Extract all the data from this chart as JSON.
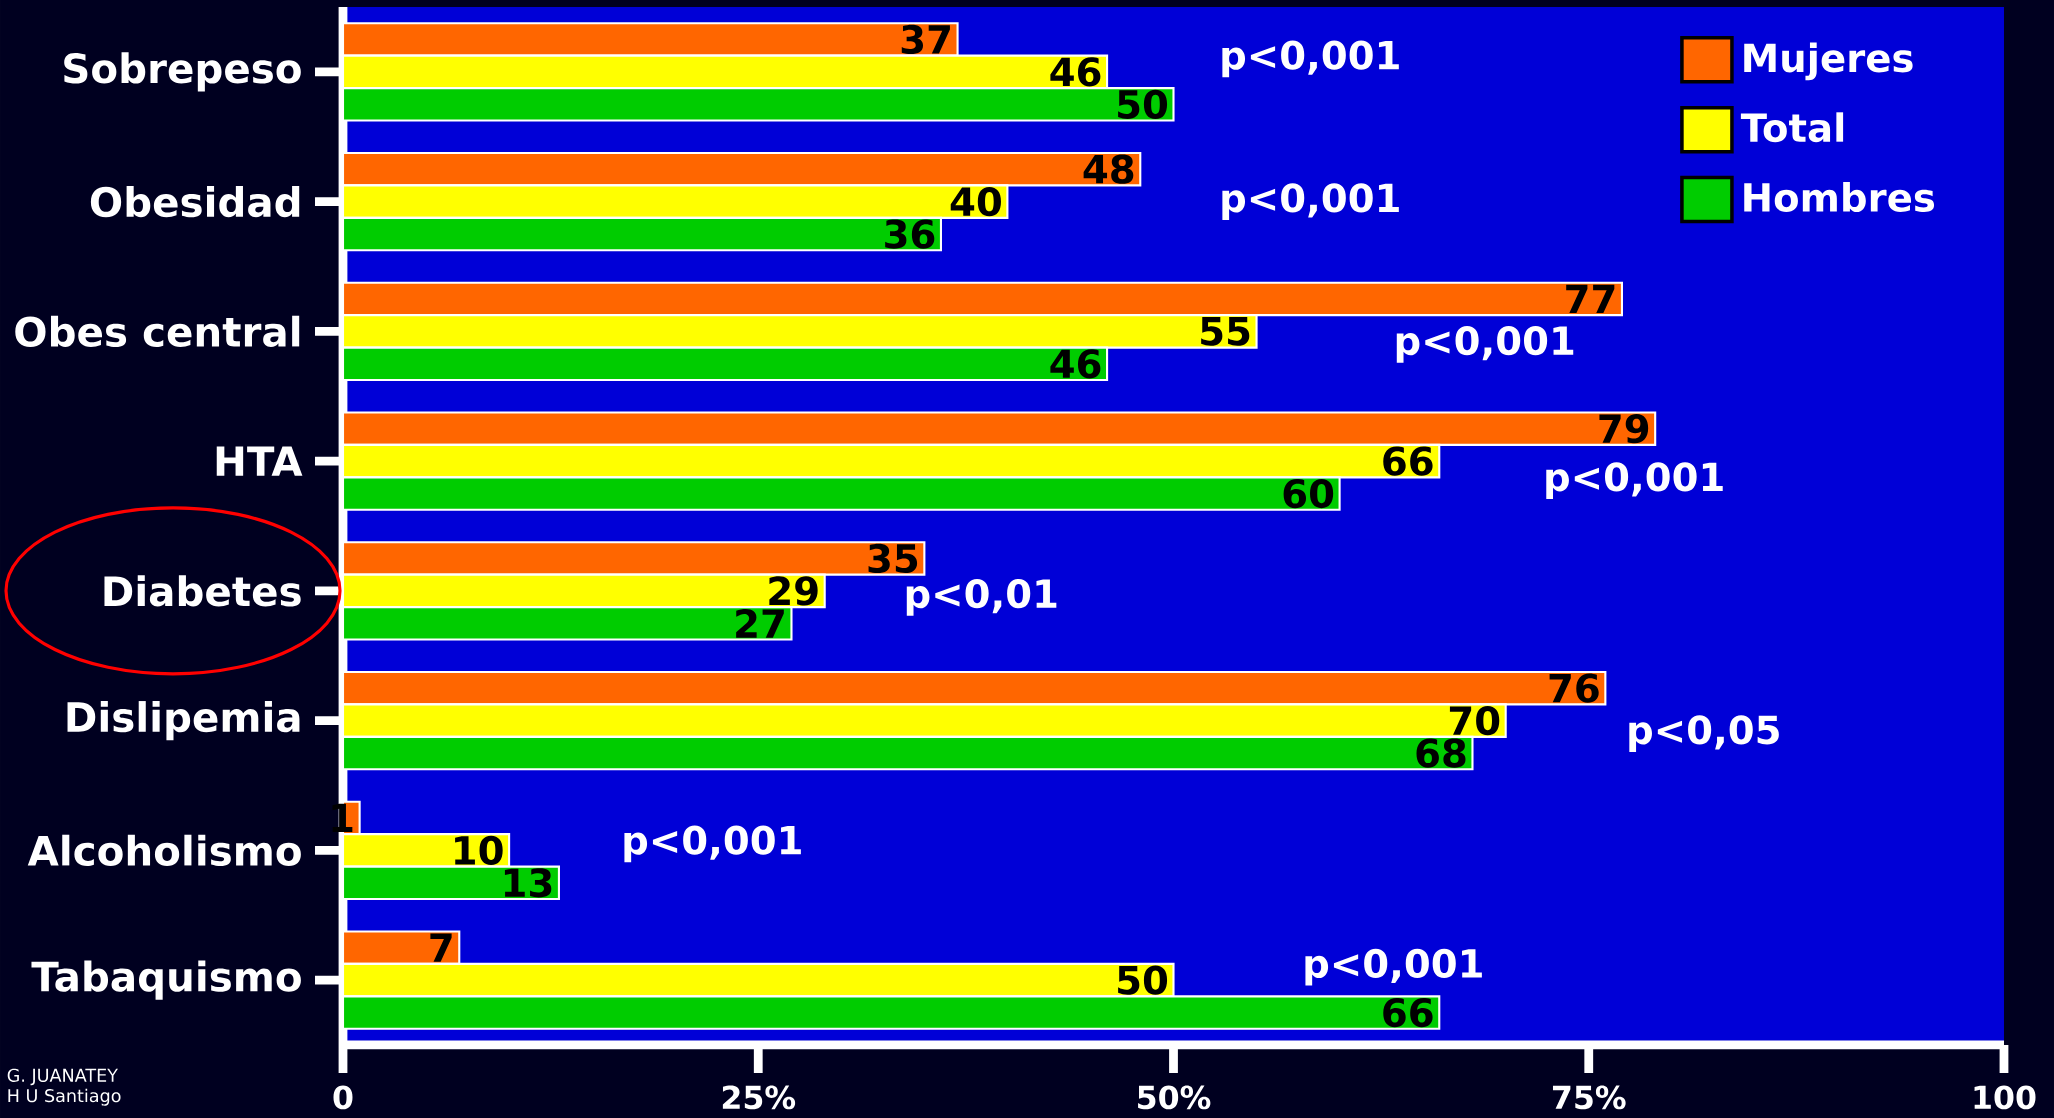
{
  "chart_data": {
    "type": "bar",
    "orientation": "horizontal",
    "categories": [
      "Sobrepeso",
      "Obesidad",
      "Obes central",
      "HTA",
      "Diabetes",
      "Dislipemia",
      "Alcoholismo",
      "Tabaquismo"
    ],
    "series": [
      {
        "name": "Mujeres",
        "color": "#ff6600",
        "values": [
          37,
          48,
          77,
          79,
          35,
          76,
          1,
          7
        ]
      },
      {
        "name": "Total",
        "color": "#ffff00",
        "values": [
          46,
          40,
          55,
          66,
          29,
          70,
          10,
          50
        ]
      },
      {
        "name": "Hombres",
        "color": "#00cc00",
        "values": [
          50,
          36,
          46,
          60,
          27,
          68,
          13,
          66
        ]
      }
    ],
    "xlim": [
      0,
      100
    ],
    "xticks": [
      0,
      {
        "value": 25,
        "label": "25%"
      },
      {
        "value": 50,
        "label": "50%"
      },
      {
        "value": 75,
        "label": "75%"
      },
      100
    ],
    "data_labels": true,
    "legend": "top right",
    "grid": false,
    "annotations": [
      "p<0,001",
      "p<0,001",
      "p<0,001",
      "p<0,001",
      "p<0,01",
      "p<0,05",
      "p<0,001",
      "p<0,001",
      "G. JUANATEY",
      "H U Santiago"
    ]
  }
}
